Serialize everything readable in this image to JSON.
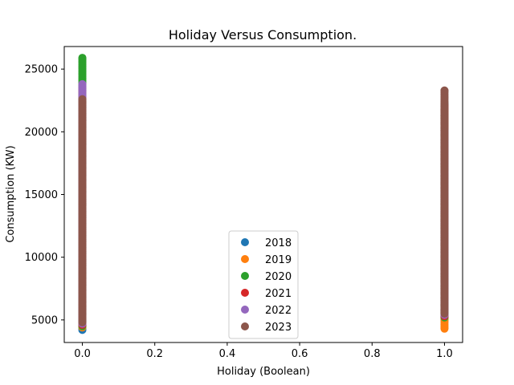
{
  "chart_data": {
    "type": "scatter",
    "title": "Holiday Versus Consumption.",
    "xlabel": "Holiday (Boolean)",
    "ylabel": "Consumption (KW)",
    "xlim": [
      -0.05,
      1.05
    ],
    "ylim": [
      3200,
      26800
    ],
    "xticks": [
      0.0,
      0.2,
      0.4,
      0.6,
      0.8,
      1.0
    ],
    "xtick_labels": [
      "0.0",
      "0.2",
      "0.4",
      "0.6",
      "0.8",
      "1.0"
    ],
    "yticks": [
      5000,
      10000,
      15000,
      20000,
      25000
    ],
    "ytick_labels": [
      "5000",
      "10000",
      "15000",
      "20000",
      "25000"
    ],
    "grid": false,
    "legend_position": "lower-center",
    "series": [
      {
        "name": "2018",
        "color": "#1f77b4",
        "x": [
          0,
          1
        ],
        "range0": [
          4200,
          22000
        ],
        "range1": [
          5000,
          22200
        ]
      },
      {
        "name": "2019",
        "color": "#ff7f0e",
        "x": [
          0,
          1
        ],
        "range0": [
          4400,
          22800
        ],
        "range1": [
          4300,
          21800
        ]
      },
      {
        "name": "2020",
        "color": "#2ca02c",
        "x": [
          0,
          1
        ],
        "range0": [
          4500,
          25900
        ],
        "range1": [
          5200,
          21300
        ]
      },
      {
        "name": "2021",
        "color": "#d62728",
        "x": [
          0,
          1
        ],
        "range0": [
          4600,
          23500
        ],
        "range1": [
          5300,
          22100
        ]
      },
      {
        "name": "2022",
        "color": "#9467bd",
        "x": [
          0,
          1
        ],
        "range0": [
          4700,
          23800
        ],
        "range1": [
          5400,
          20100
        ]
      },
      {
        "name": "2023",
        "color": "#8c564b",
        "x": [
          0,
          1
        ],
        "range0": [
          4800,
          22600
        ],
        "range1": [
          5500,
          23300
        ]
      }
    ]
  }
}
